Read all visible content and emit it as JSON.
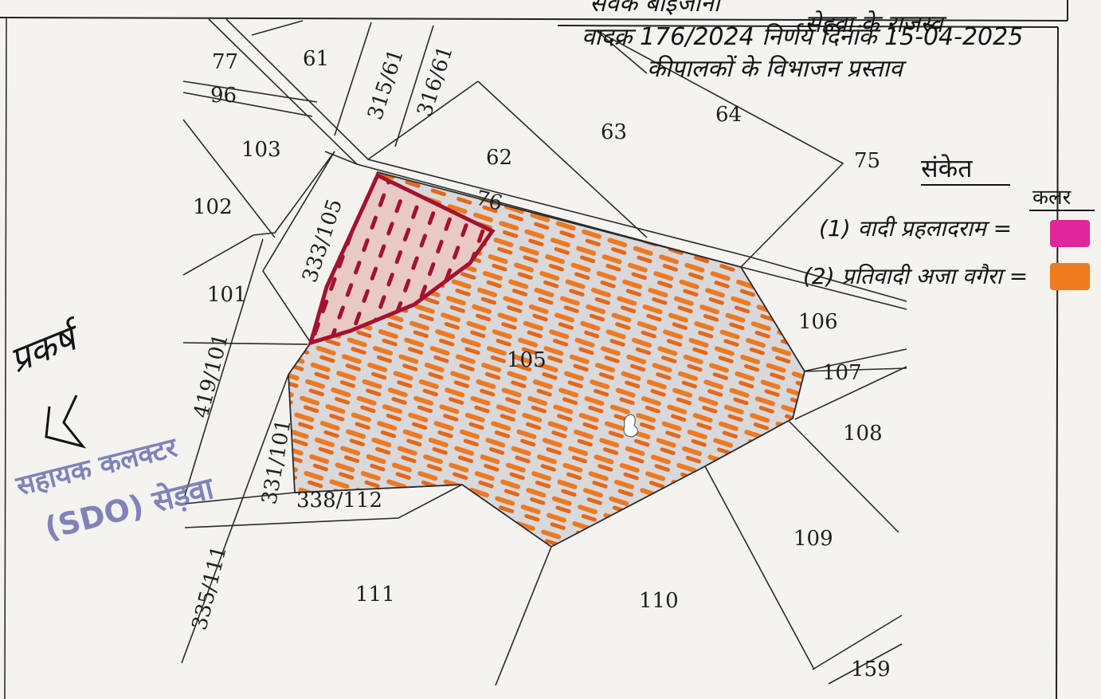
{
  "header": {
    "line1": "सेवक बाईजानी",
    "line2": "वादक्र 176/2024 निर्णय दिनांक 15-04-2025",
    "line3": "सेहवा के राजस्व",
    "line4": "कीपालकों के विभाजन प्रस्ताव"
  },
  "legend": {
    "title": "संकेत",
    "color_heading": "कलर",
    "items": [
      {
        "text": "(1) वादी प्रहलादराम =",
        "color": "#e0269a"
      },
      {
        "text": "(2) प्रतिवादी अजा वगैरा =",
        "color": "#f07a1e"
      }
    ]
  },
  "plots": {
    "p77": "77",
    "p61": "61",
    "p315_61": "315/61",
    "p316_61": "316/61",
    "p96": "96",
    "p103": "103",
    "p62": "62",
    "p63": "63",
    "p64": "64",
    "p75": "75",
    "p102": "102",
    "p333_105": "333/105",
    "p76": "76",
    "p101": "101",
    "p106": "106",
    "p105": "105",
    "p107": "107",
    "p419_101": "419/101",
    "p108": "108",
    "p331_101": "331/101",
    "p338_112": "338/112",
    "p109": "109",
    "p335_111": "335/111",
    "p111": "111",
    "p110": "110",
    "p159": "159"
  },
  "stamp": {
    "line1": "सहायक कलक्टर",
    "line2": "(SDO) सेड़वा"
  },
  "signature": {
    "text": "प्रकर्ष"
  },
  "colors": {
    "plaintiff_pink": "#e0269a",
    "defendant_orange": "#f07a1e",
    "plaintiff_hatch": "#a3122e",
    "stamp_blue": "#5a5ea8"
  }
}
